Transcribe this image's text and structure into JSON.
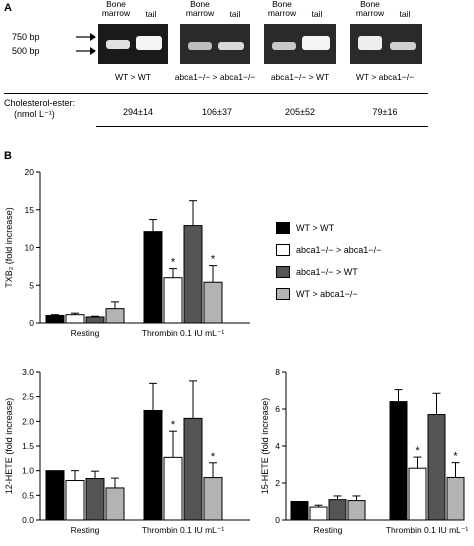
{
  "panel_a": {
    "letter": "A",
    "gels": [
      {
        "lane1": "Bone\nmarrow",
        "lane2": "tail",
        "group": "WT > WT",
        "cholesterol": "294±14"
      },
      {
        "lane1": "Bone\nmarrow",
        "lane2": "tail",
        "group": "abca1−/− > abca1−/−",
        "cholesterol": "106±37"
      },
      {
        "lane1": "Bone\nmarrow",
        "lane2": "tail",
        "group": "abca1−/− > WT",
        "cholesterol": "205±52"
      },
      {
        "lane1": "Bone\nmarrow",
        "lane2": "tail",
        "group": "WT > abca1−/−",
        "cholesterol": "79±16"
      }
    ],
    "bp_750": "750 bp",
    "bp_500": "500 bp",
    "cholesterol_label_1": "Cholesterol-ester:",
    "cholesterol_label_2": "(nmol L⁻¹)"
  },
  "panel_b": {
    "letter": "B"
  },
  "legend": [
    {
      "label": "WT > WT",
      "color": "#000000"
    },
    {
      "label": "abca1−/− > abca1−/−",
      "color": "#ffffff"
    },
    {
      "label": "abca1−/− > WT",
      "color": "#555555"
    },
    {
      "label": "WT > abca1−/−",
      "color": "#b3b3b3"
    }
  ],
  "chart_data": [
    {
      "type": "bar",
      "categories": [
        "Resting",
        "Thrombin 0.1 IU mL⁻¹"
      ],
      "ylabel": "TXB₂ (fold increase)",
      "ylim": [
        0,
        20
      ],
      "yticks": [
        0,
        5,
        10,
        15,
        20
      ],
      "series": [
        {
          "name": "WT > WT",
          "values": [
            1.0,
            12.1
          ],
          "errors": [
            0.1,
            1.6
          ],
          "significant": [
            false,
            false
          ]
        },
        {
          "name": "abca1−/− > abca1−/−",
          "values": [
            1.1,
            6.0
          ],
          "errors": [
            0.2,
            1.2
          ],
          "significant": [
            false,
            true
          ]
        },
        {
          "name": "abca1−/− > WT",
          "values": [
            0.8,
            12.9
          ],
          "errors": [
            0.1,
            3.3
          ],
          "significant": [
            false,
            false
          ]
        },
        {
          "name": "WT > abca1−/−",
          "values": [
            1.9,
            5.4
          ],
          "errors": [
            0.9,
            2.2
          ],
          "significant": [
            false,
            true
          ]
        }
      ]
    },
    {
      "type": "bar",
      "categories": [
        "Resting",
        "Thrombin 0.1 IU mL⁻¹"
      ],
      "ylabel": "12-HETE (fold increase)",
      "ylim": [
        0,
        3
      ],
      "yticks": [
        0,
        0.5,
        1.0,
        1.5,
        2.0,
        2.5,
        3.0
      ],
      "series": [
        {
          "name": "WT > WT",
          "values": [
            1.0,
            2.22
          ],
          "errors": [
            0.0,
            0.55
          ],
          "significant": [
            false,
            false
          ]
        },
        {
          "name": "abca1−/− > abca1−/−",
          "values": [
            0.8,
            1.27
          ],
          "errors": [
            0.2,
            0.53
          ],
          "significant": [
            false,
            true
          ]
        },
        {
          "name": "abca1−/− > WT",
          "values": [
            0.84,
            2.06
          ],
          "errors": [
            0.15,
            0.76
          ],
          "significant": [
            false,
            false
          ]
        },
        {
          "name": "WT > abca1−/−",
          "values": [
            0.65,
            0.86
          ],
          "errors": [
            0.2,
            0.3
          ],
          "significant": [
            false,
            true
          ]
        }
      ]
    },
    {
      "type": "bar",
      "categories": [
        "Resting",
        "Thrombin 0.1 IU mL⁻¹"
      ],
      "ylabel": "15-HETE (fold increase)",
      "ylim": [
        0,
        8
      ],
      "yticks": [
        0,
        2,
        4,
        6,
        8
      ],
      "series": [
        {
          "name": "WT > WT",
          "values": [
            1.0,
            6.4
          ],
          "errors": [
            0.0,
            0.65
          ],
          "significant": [
            false,
            false
          ]
        },
        {
          "name": "abca1−/− > abca1−/−",
          "values": [
            0.7,
            2.8
          ],
          "errors": [
            0.1,
            0.6
          ],
          "significant": [
            false,
            true
          ]
        },
        {
          "name": "abca1−/− > WT",
          "values": [
            1.1,
            5.7
          ],
          "errors": [
            0.2,
            1.15
          ],
          "significant": [
            false,
            false
          ]
        },
        {
          "name": "WT > abca1−/−",
          "values": [
            1.05,
            2.3
          ],
          "errors": [
            0.25,
            0.8
          ],
          "significant": [
            false,
            true
          ]
        }
      ]
    }
  ]
}
